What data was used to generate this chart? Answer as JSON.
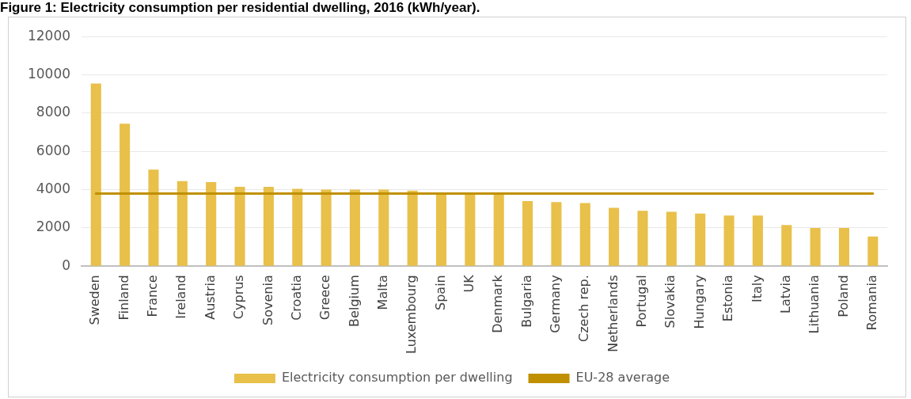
{
  "chart_data": {
    "type": "bar",
    "title": "Figure 1: Electricity consumption per residential dwelling, 2016 (kWh/year).",
    "categories": [
      "Sweden",
      "Finland",
      "France",
      "Ireland",
      "Austria",
      "Cyprus",
      "Sovenia",
      "Croatia",
      "Greece",
      "Belgium",
      "Malta",
      "Luxembourg",
      "Spain",
      "UK",
      "Denmark",
      "Bulgaria",
      "Germany",
      "Czech rep.",
      "Netherlands",
      "Portugal",
      "Slovakia",
      "Hungary",
      "Estonia",
      "Italy",
      "Latvia",
      "Lithuania",
      "Poland",
      "Romania"
    ],
    "series": [
      {
        "name": "Electricity consumption per dwelling",
        "color": "#e8c04a",
        "values": [
          9550,
          7450,
          5050,
          4450,
          4400,
          4150,
          4150,
          4050,
          4000,
          4000,
          4000,
          3950,
          3800,
          3800,
          3800,
          3400,
          3350,
          3300,
          3050,
          2900,
          2850,
          2750,
          2650,
          2650,
          2150,
          2000,
          2000,
          1550
        ]
      },
      {
        "name": "EU-28 average",
        "type": "line",
        "color": "#c09000",
        "values": [
          3800,
          3800,
          3800,
          3800,
          3800,
          3800,
          3800,
          3800,
          3800,
          3800,
          3800,
          3800,
          3800,
          3800,
          3800,
          3800,
          3800,
          3800,
          3800,
          3800,
          3800,
          3800,
          3800,
          3800,
          3800,
          3800,
          3800,
          3800
        ]
      }
    ],
    "ylim": [
      0,
      12000
    ],
    "yticks": [
      0,
      2000,
      4000,
      6000,
      8000,
      10000,
      12000
    ],
    "grid": "y",
    "legend": "bottom",
    "marker": "none"
  }
}
